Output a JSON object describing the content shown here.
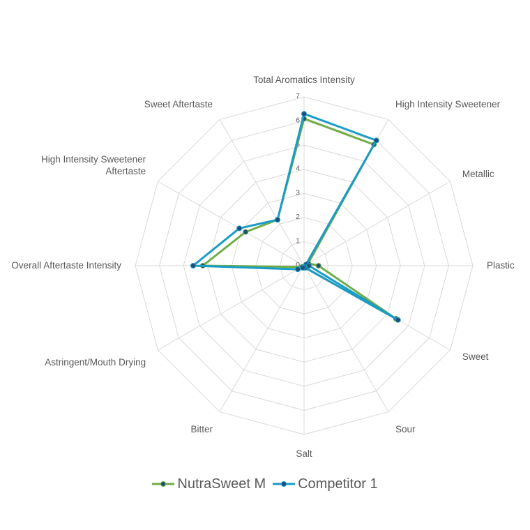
{
  "chart_data": {
    "type": "radar",
    "axes": [
      "Total Aromatics Intensity",
      "High Intensity Sweetener",
      "Metallic",
      "Plastic",
      "Sweet",
      "Sour",
      "Salt",
      "Bitter",
      "Astringent/Mouth Drying",
      "Overall Aftertaste Intensity",
      "High Intensity Sweetener Aftertaste",
      "Sweet Aftertaste"
    ],
    "range": [
      0,
      7
    ],
    "ticks": [
      "0",
      "1",
      "2",
      "3",
      "4",
      "5",
      "6",
      "7"
    ],
    "grid": true,
    "legend_position": "bottom",
    "series": [
      {
        "name": "NutraSweet M",
        "color": "#70AD47",
        "values": [
          6.1,
          5.8,
          0.2,
          0.6,
          4.4,
          0.1,
          0.05,
          0.1,
          0.1,
          4.2,
          2.8,
          2.2
        ]
      },
      {
        "name": "Competitor 1",
        "color": "#1A9CC7",
        "values": [
          6.3,
          6.0,
          0.1,
          0.2,
          4.5,
          0.1,
          0.05,
          0.1,
          0.3,
          4.6,
          3.1,
          2.2
        ]
      }
    ]
  }
}
